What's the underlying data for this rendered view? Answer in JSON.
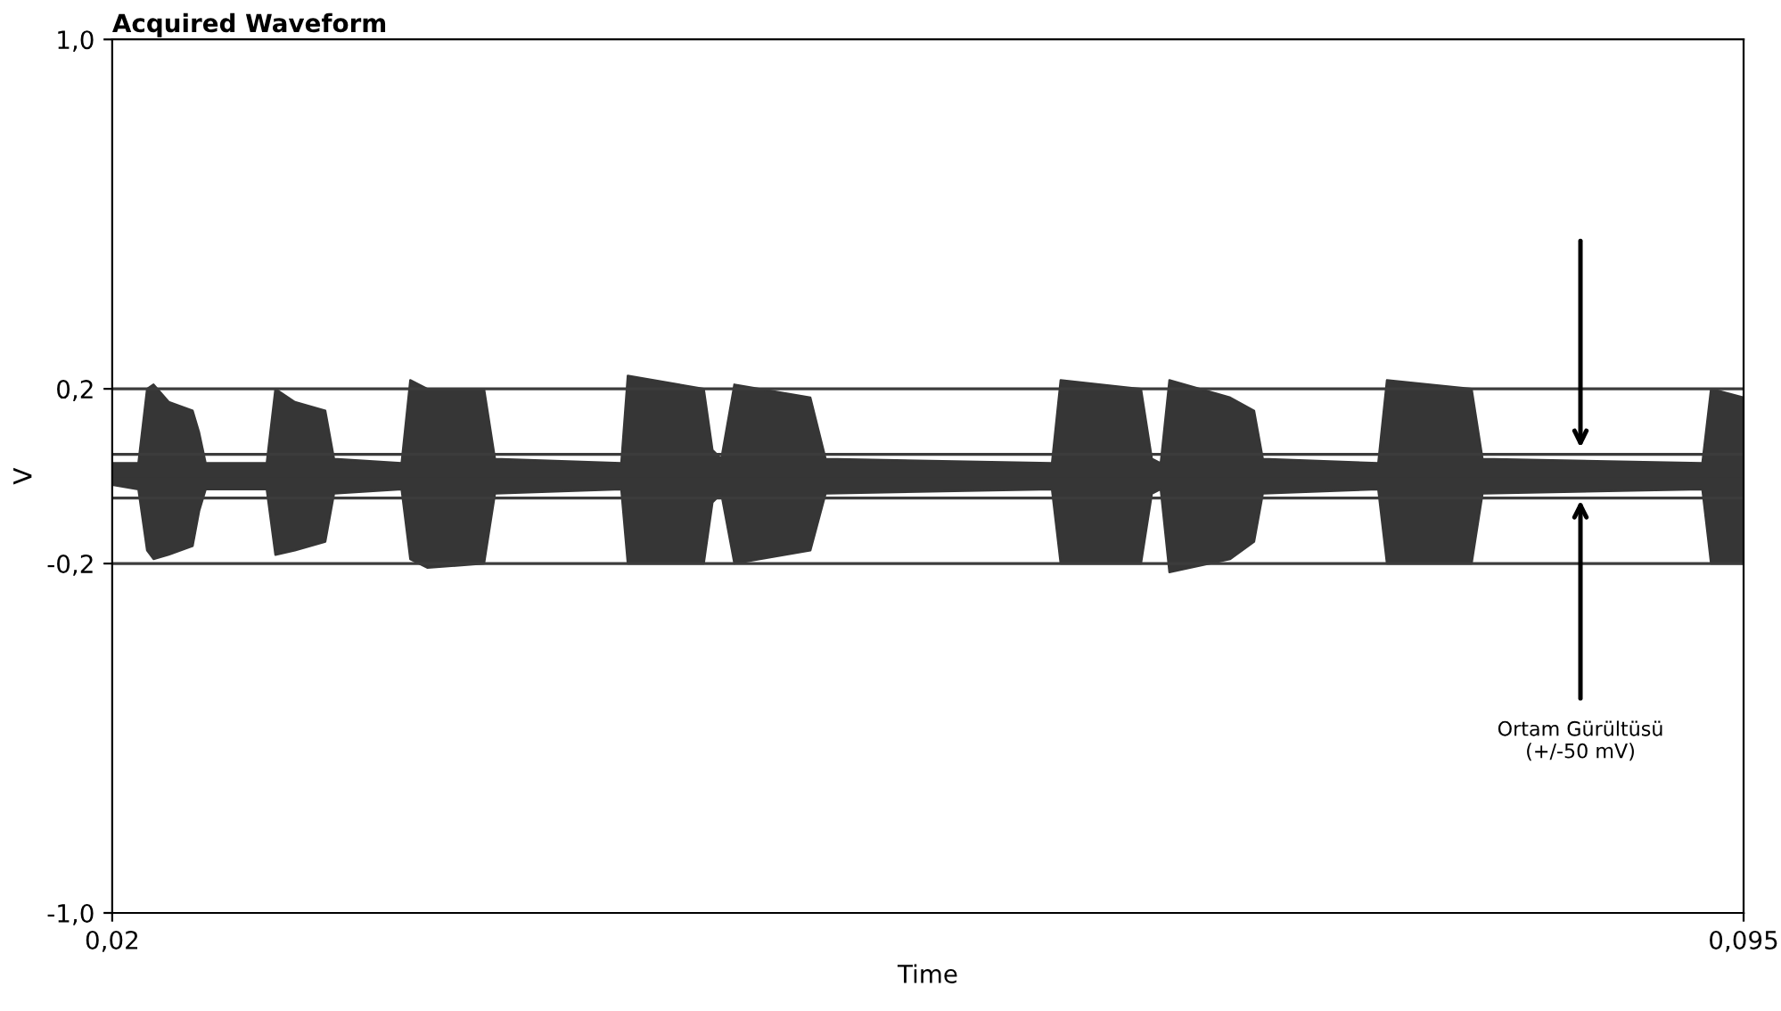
{
  "chart_data": {
    "type": "area",
    "title": "Acquired Waveform",
    "xlabel": "Time",
    "ylabel": "V",
    "x": [
      0.02,
      0.0212,
      0.0216,
      0.0219,
      0.0226,
      0.0237,
      0.024,
      0.0243,
      0.0271,
      0.0275,
      0.0284,
      0.0298,
      0.0302,
      0.0333,
      0.0337,
      0.0345,
      0.0371,
      0.0376,
      0.0434,
      0.0437,
      0.0472,
      0.0476,
      0.048,
      0.0486,
      0.0521,
      0.0528,
      0.0632,
      0.0636,
      0.0673,
      0.0678,
      0.0682,
      0.0686,
      0.0714,
      0.0725,
      0.0729,
      0.0782,
      0.0786,
      0.0825,
      0.083,
      0.0931,
      0.0935,
      0.095
    ],
    "series": [
      {
        "color": "#363636",
        "values": [
          0.03,
          0.03,
          0.2,
          0.21,
          0.17,
          0.15,
          0.1,
          0.03,
          0.03,
          0.2,
          0.17,
          0.15,
          0.04,
          0.03,
          0.22,
          0.2,
          0.2,
          0.04,
          0.03,
          0.23,
          0.2,
          0.06,
          0.04,
          0.21,
          0.18,
          0.04,
          0.03,
          0.22,
          0.2,
          0.04,
          0.03,
          0.22,
          0.18,
          0.15,
          0.04,
          0.03,
          0.22,
          0.2,
          0.04,
          0.03,
          0.2,
          0.18
        ]
      },
      {
        "color": "#363636",
        "values": [
          -0.02,
          -0.03,
          -0.17,
          -0.19,
          -0.18,
          -0.16,
          -0.08,
          -0.03,
          -0.03,
          -0.18,
          -0.17,
          -0.15,
          -0.04,
          -0.03,
          -0.19,
          -0.21,
          -0.2,
          -0.04,
          -0.03,
          -0.2,
          -0.2,
          -0.06,
          -0.04,
          -0.2,
          -0.17,
          -0.04,
          -0.03,
          -0.2,
          -0.2,
          -0.04,
          -0.03,
          -0.22,
          -0.19,
          -0.15,
          -0.04,
          -0.03,
          -0.2,
          -0.2,
          -0.04,
          -0.03,
          -0.2,
          -0.2
        ]
      }
    ],
    "xlim": [
      0.02,
      0.095
    ],
    "ylim": [
      -1.0,
      1.0
    ],
    "xticks": [
      {
        "value": 0.02,
        "label": "0,02"
      },
      {
        "value": 0.095,
        "label": "0,095"
      }
    ],
    "yticks": [
      {
        "value": -1.0,
        "label": "-1,0"
      },
      {
        "value": -0.2,
        "label": "-0,2"
      },
      {
        "value": 0.2,
        "label": "0,2"
      },
      {
        "value": 1.0,
        "label": "1,0"
      }
    ],
    "ref_lines": [
      {
        "axis": "y",
        "value": 0.2,
        "color": "#3c3c3c"
      },
      {
        "axis": "y",
        "value": -0.2,
        "color": "#3c3c3c"
      },
      {
        "axis": "y",
        "value": 0.05,
        "color": "#3c3c3c"
      },
      {
        "axis": "y",
        "value": -0.05,
        "color": "#3c3c3c"
      }
    ],
    "annotations": [
      "Ortam Gürültüsü\n(+/-50 mV)"
    ],
    "grid": false,
    "legend": false
  }
}
